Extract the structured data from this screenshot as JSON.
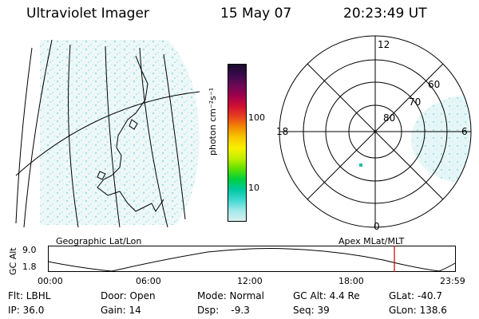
{
  "header": {
    "title": "Ultraviolet Imager",
    "date": "15 May 07",
    "time": "20:23:49 UT"
  },
  "left_panel": {
    "label": "Geographic Lat/Lon"
  },
  "colorbar": {
    "unit_label": "photon cm⁻²s⁻¹",
    "ticks": [
      "100",
      "10"
    ],
    "colors": [
      "#1a0a2e",
      "#3a0a4a",
      "#6a0a55",
      "#a0004a",
      "#d01030",
      "#e84020",
      "#f08a00",
      "#f8c800",
      "#f8f000",
      "#c0f000",
      "#60e000",
      "#00d040",
      "#00c8a0",
      "#40d8d0",
      "#a0e8e8",
      "#d8f0f0"
    ]
  },
  "right_panel": {
    "label": "Apex MLat/MLT",
    "mlt_labels": [
      "12",
      "18",
      "6",
      "0"
    ],
    "lat_labels": [
      "60",
      "70",
      "80"
    ]
  },
  "timeline": {
    "axis_label": "GC Alt",
    "y_ticks": [
      "9.0",
      "1.8"
    ],
    "x_ticks": [
      "00:00",
      "06:00",
      "12:00",
      "18:00",
      "23:59"
    ],
    "marker_color": "#cc0000"
  },
  "footer": {
    "flt": "Flt: LBHL",
    "ip": "IP: 36.0",
    "door": "Door: Open",
    "gain": "Gain: 14",
    "mode": "Mode: Normal",
    "dsp": "Dsp:    -9.3",
    "gc_alt": "GC Alt: 4.4 Re",
    "seq": "Seq: 39",
    "glat": "GLat: -40.7",
    "glon": "GLon: 138.6"
  }
}
